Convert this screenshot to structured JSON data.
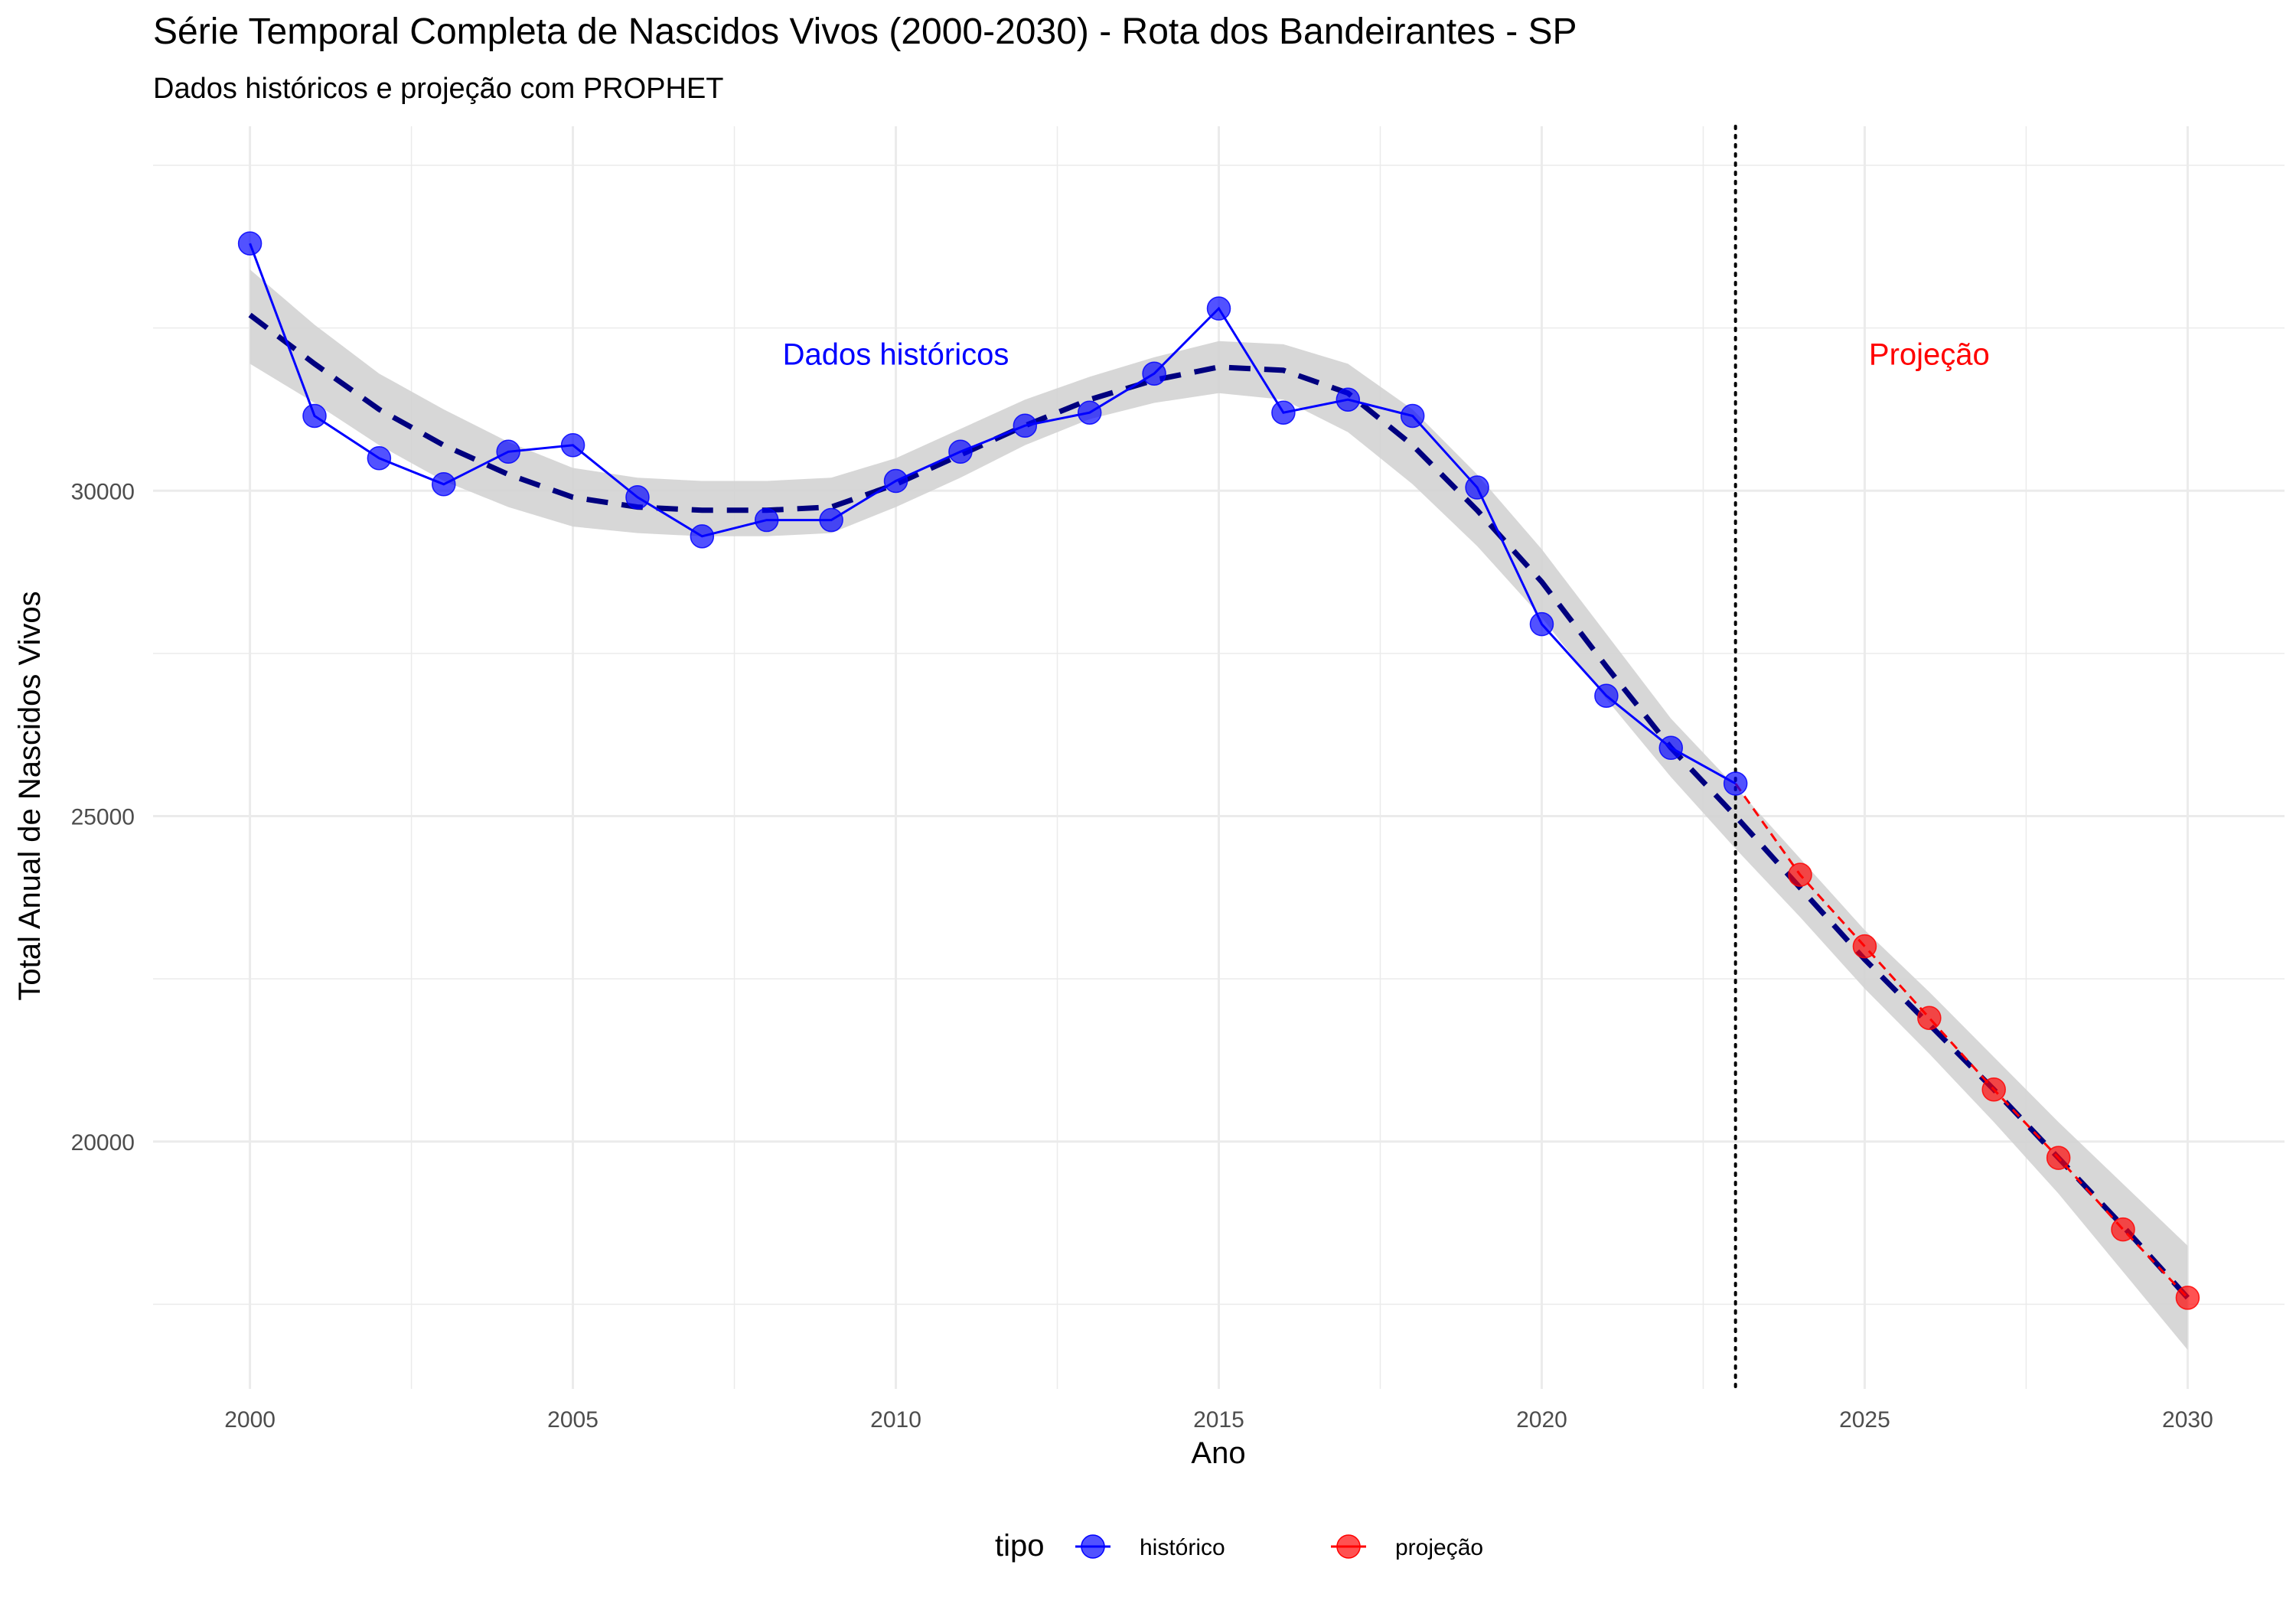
{
  "chart_data": {
    "type": "line",
    "title": "Série Temporal Completa de Nascidos Vivos (2000-2030) -  Rota dos Bandeirantes - SP",
    "subtitle": "Dados históricos e projeção com PROPHET",
    "xlabel": "Ano",
    "ylabel": "Total Anual de Nascidos Vivos",
    "xlim": [
      1998.5,
      2031.5
    ],
    "ylim": [
      16200,
      35600
    ],
    "x_ticks": [
      2000,
      2005,
      2010,
      2015,
      2020,
      2025,
      2030
    ],
    "y_ticks": [
      20000,
      25000,
      30000
    ],
    "grid": true,
    "vline": {
      "x": 2023,
      "style": "dotted",
      "color": "#000000"
    },
    "annotations": [
      {
        "text": "Dados históricos",
        "x": 2010,
        "y": 32100,
        "color": "#0000ff"
      },
      {
        "text": "Projeção",
        "x": 2026,
        "y": 32100,
        "color": "#ff0000"
      }
    ],
    "series": [
      {
        "name": "histórico",
        "color": "#0000ff",
        "x": [
          2000,
          2001,
          2002,
          2003,
          2004,
          2005,
          2006,
          2007,
          2008,
          2009,
          2010,
          2011,
          2012,
          2013,
          2014,
          2015,
          2016,
          2017,
          2018,
          2019,
          2020,
          2021,
          2022,
          2023
        ],
        "values": [
          33800,
          31150,
          30500,
          30100,
          30600,
          30700,
          29900,
          29300,
          29550,
          29550,
          30150,
          30600,
          31000,
          31200,
          31800,
          32800,
          31200,
          31400,
          31150,
          30050,
          27950,
          26850,
          26050,
          25500
        ]
      },
      {
        "name": "projeção",
        "color": "#ff0000",
        "x": [
          2023,
          2024,
          2025,
          2026,
          2027,
          2028,
          2029,
          2030
        ],
        "values": [
          25500,
          24100,
          23000,
          21900,
          20800,
          19750,
          18650,
          17600
        ]
      }
    ],
    "smooth": {
      "color": "#00007f",
      "band_color": "#d3d3d3",
      "x": [
        2000,
        2001,
        2002,
        2003,
        2004,
        2005,
        2006,
        2007,
        2008,
        2009,
        2010,
        2011,
        2012,
        2013,
        2014,
        2015,
        2016,
        2017,
        2018,
        2019,
        2020,
        2021,
        2022,
        2023,
        2024,
        2025,
        2026,
        2027,
        2028,
        2029,
        2030
      ],
      "values": [
        32700,
        31950,
        31250,
        30700,
        30250,
        29900,
        29750,
        29700,
        29700,
        29750,
        30100,
        30550,
        31000,
        31400,
        31700,
        31900,
        31850,
        31500,
        30700,
        29700,
        28600,
        27300,
        26050,
        25000,
        23900,
        22800,
        21800,
        20800,
        19750,
        18700,
        17600
      ],
      "lower": [
        31950,
        31350,
        30700,
        30150,
        29750,
        29450,
        29350,
        29300,
        29300,
        29350,
        29750,
        30200,
        30700,
        31100,
        31350,
        31500,
        31400,
        30900,
        30100,
        29150,
        28050,
        26800,
        25600,
        24500,
        23450,
        22350,
        21350,
        20300,
        19200,
        18000,
        16800
      ],
      "upper": [
        33400,
        32550,
        31800,
        31250,
        30750,
        30350,
        30200,
        30150,
        30150,
        30200,
        30500,
        30950,
        31400,
        31750,
        32050,
        32300,
        32250,
        31950,
        31250,
        30250,
        29100,
        27800,
        26500,
        25450,
        24350,
        23250,
        22300,
        21300,
        20300,
        19350,
        18400
      ]
    },
    "legend": {
      "title": "tipo",
      "position": "bottom",
      "entries": [
        {
          "label": "histórico",
          "color": "#0000ff"
        },
        {
          "label": "projeção",
          "color": "#ff0000"
        }
      ]
    }
  }
}
